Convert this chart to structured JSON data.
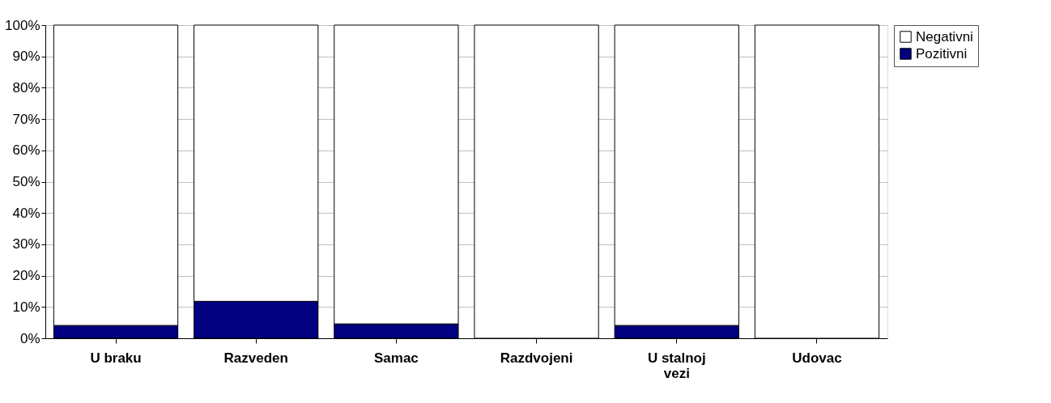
{
  "chart_data": {
    "type": "bar",
    "stacked": true,
    "categories": [
      "U braku",
      "Razveden",
      "Samac",
      "Razdvojeni",
      "U stalnoj vezi",
      "Udovac"
    ],
    "series": [
      {
        "name": "Pozitivni",
        "color": "#000080",
        "values": [
          4.1,
          11.8,
          4.6,
          0,
          4.1,
          0
        ]
      },
      {
        "name": "Negativni",
        "color": "#ffffff",
        "values": [
          95.9,
          88.2,
          95.4,
          100,
          95.9,
          100
        ]
      }
    ],
    "ylim": [
      0,
      100
    ],
    "yticks": [
      {
        "value": 0,
        "label": "0%"
      },
      {
        "value": 10,
        "label": "10%"
      },
      {
        "value": 20,
        "label": "20%"
      },
      {
        "value": 30,
        "label": "30%"
      },
      {
        "value": 40,
        "label": "40%"
      },
      {
        "value": 50,
        "label": "50%"
      },
      {
        "value": 60,
        "label": "60%"
      },
      {
        "value": 70,
        "label": "70%"
      },
      {
        "value": 80,
        "label": "80%"
      },
      {
        "value": 90,
        "label": "90%"
      },
      {
        "value": 100,
        "label": "100%"
      }
    ],
    "grid": "y",
    "legend": "top right"
  }
}
